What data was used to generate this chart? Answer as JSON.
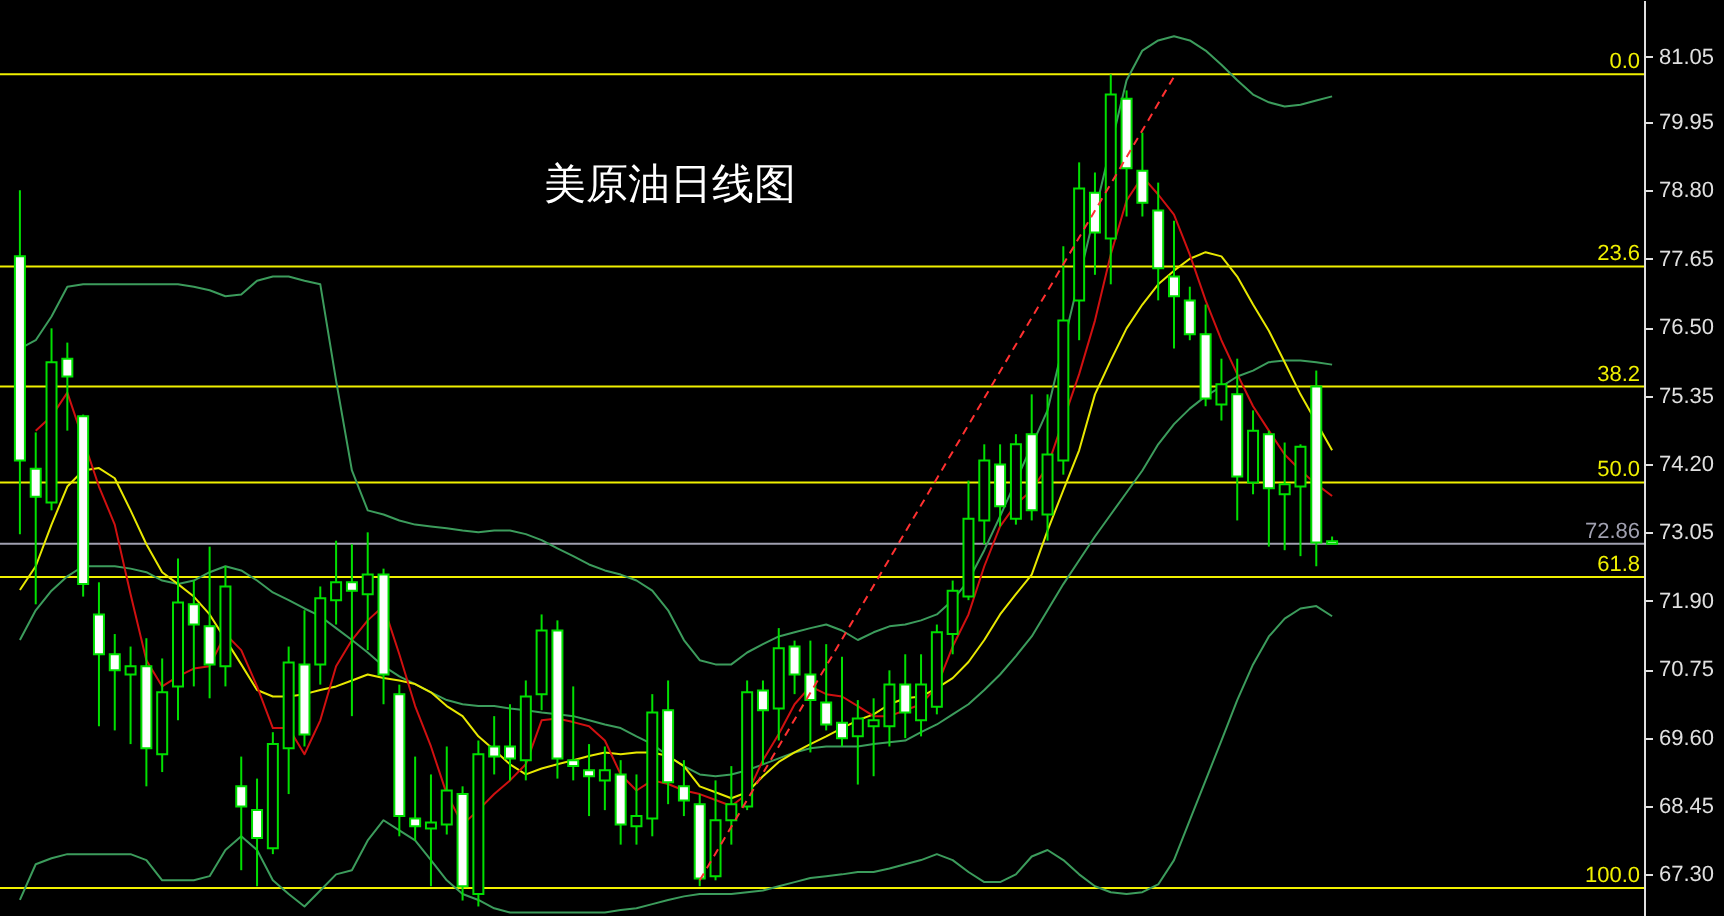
{
  "chart_data": {
    "type": "candlestick",
    "title": "美原油日线图",
    "categories": [
      null,
      null,
      null,
      null,
      null,
      null,
      null,
      null,
      null,
      null,
      null,
      null,
      null,
      null,
      null,
      null,
      null,
      null,
      null,
      null,
      null,
      null,
      null,
      null,
      null,
      null,
      null,
      null,
      null,
      null,
      null,
      null,
      null,
      null,
      null,
      null,
      null,
      null,
      null,
      null,
      null,
      null,
      null,
      null,
      null,
      null,
      null,
      null,
      null,
      null,
      null,
      null,
      null,
      null,
      null,
      null,
      null,
      null,
      null,
      null,
      null,
      null,
      null,
      null,
      null,
      null,
      null,
      null,
      null,
      null,
      null,
      null,
      null,
      null,
      null,
      null,
      null,
      null,
      null,
      null,
      null,
      null,
      null,
      null
    ],
    "ohlc": [
      [
        77.69,
        78.8,
        73.02,
        74.26
      ],
      [
        74.12,
        74.73,
        71.84,
        73.65
      ],
      [
        73.55,
        76.48,
        73.42,
        75.91
      ],
      [
        75.97,
        76.24,
        74.76,
        75.67
      ],
      [
        75.0,
        75.03,
        71.97,
        72.18
      ],
      [
        71.67,
        72.21,
        69.79,
        71.0
      ],
      [
        71.0,
        71.34,
        69.72,
        70.73
      ],
      [
        70.66,
        71.13,
        69.49,
        70.8
      ],
      [
        70.8,
        71.27,
        68.78,
        69.42
      ],
      [
        69.32,
        70.93,
        69.02,
        70.36
      ],
      [
        70.46,
        72.61,
        69.89,
        71.87
      ],
      [
        71.84,
        72.24,
        70.46,
        71.5
      ],
      [
        71.47,
        72.81,
        70.26,
        70.83
      ],
      [
        70.8,
        72.48,
        70.46,
        72.14
      ],
      [
        68.78,
        69.28,
        67.37,
        68.44
      ],
      [
        68.38,
        68.91,
        67.1,
        67.91
      ],
      [
        67.74,
        69.69,
        67.64,
        69.49
      ],
      [
        69.42,
        71.13,
        68.65,
        70.86
      ],
      [
        70.83,
        71.74,
        69.45,
        69.65
      ],
      [
        70.83,
        72.14,
        70.49,
        71.94
      ],
      [
        71.91,
        72.91,
        71.5,
        72.21
      ],
      [
        72.21,
        72.85,
        69.96,
        72.07
      ],
      [
        72.01,
        73.05,
        71.07,
        72.34
      ],
      [
        72.34,
        72.44,
        70.16,
        70.66
      ],
      [
        70.33,
        70.49,
        67.94,
        68.28
      ],
      [
        68.24,
        69.28,
        67.87,
        68.11
      ],
      [
        68.07,
        68.98,
        67.1,
        68.17
      ],
      [
        68.14,
        69.45,
        67.97,
        68.71
      ],
      [
        68.65,
        68.78,
        66.86,
        67.1
      ],
      [
        66.97,
        69.55,
        66.76,
        69.32
      ],
      [
        69.45,
        69.96,
        68.98,
        69.28
      ],
      [
        69.45,
        70.16,
        68.88,
        69.25
      ],
      [
        69.22,
        70.56,
        68.88,
        70.29
      ],
      [
        70.33,
        71.67,
        70.06,
        71.4
      ],
      [
        71.4,
        71.57,
        68.91,
        69.25
      ],
      [
        69.22,
        70.46,
        68.88,
        69.12
      ],
      [
        69.05,
        69.49,
        68.28,
        68.95
      ],
      [
        68.88,
        69.45,
        68.38,
        69.05
      ],
      [
        68.98,
        69.22,
        67.8,
        68.14
      ],
      [
        68.11,
        68.98,
        67.8,
        68.28
      ],
      [
        68.24,
        70.33,
        67.94,
        70.02
      ],
      [
        70.06,
        70.56,
        68.48,
        68.85
      ],
      [
        68.78,
        69.22,
        68.28,
        68.54
      ],
      [
        68.48,
        68.65,
        67.1,
        67.23
      ],
      [
        67.27,
        68.88,
        67.2,
        68.21
      ],
      [
        68.21,
        69.12,
        67.8,
        68.48
      ],
      [
        68.44,
        70.56,
        68.38,
        70.36
      ],
      [
        70.39,
        70.56,
        69.15,
        70.06
      ],
      [
        70.09,
        71.44,
        69.55,
        71.1
      ],
      [
        71.13,
        71.23,
        70.33,
        70.66
      ],
      [
        70.66,
        71.23,
        69.35,
        70.23
      ],
      [
        70.19,
        71.17,
        69.72,
        69.82
      ],
      [
        69.85,
        70.96,
        69.45,
        69.59
      ],
      [
        69.62,
        70.23,
        68.81,
        69.92
      ],
      [
        69.79,
        70.26,
        68.95,
        69.89
      ],
      [
        69.79,
        70.73,
        69.45,
        70.49
      ],
      [
        70.49,
        71.0,
        69.59,
        70.02
      ],
      [
        69.89,
        71.0,
        69.62,
        70.49
      ],
      [
        70.12,
        71.5,
        69.99,
        71.37
      ],
      [
        71.34,
        72.24,
        71.0,
        72.07
      ],
      [
        71.97,
        73.92,
        71.91,
        73.28
      ],
      [
        73.25,
        74.53,
        72.85,
        74.26
      ],
      [
        74.19,
        74.53,
        73.15,
        73.49
      ],
      [
        73.28,
        74.7,
        73.18,
        74.53
      ],
      [
        74.7,
        75.37,
        73.25,
        73.42
      ],
      [
        73.35,
        75.37,
        72.91,
        74.36
      ],
      [
        74.26,
        77.86,
        74.02,
        76.61
      ],
      [
        76.95,
        79.27,
        76.28,
        78.83
      ],
      [
        78.76,
        79.1,
        77.38,
        78.09
      ],
      [
        77.99,
        80.75,
        77.22,
        80.41
      ],
      [
        80.34,
        80.48,
        78.36,
        79.17
      ],
      [
        79.13,
        79.77,
        78.36,
        78.59
      ],
      [
        78.46,
        78.93,
        76.95,
        77.49
      ],
      [
        77.35,
        78.29,
        76.14,
        77.02
      ],
      [
        76.95,
        77.18,
        76.28,
        76.38
      ],
      [
        76.38,
        76.88,
        75.17,
        75.3
      ],
      [
        75.2,
        75.97,
        74.93,
        75.54
      ],
      [
        75.37,
        75.97,
        73.25,
        73.99
      ],
      [
        73.89,
        75.1,
        73.69,
        74.76
      ],
      [
        74.7,
        74.76,
        72.81,
        73.79
      ],
      [
        73.69,
        74.56,
        72.75,
        73.86
      ],
      [
        73.82,
        74.53,
        72.65,
        74.49
      ],
      [
        75.5,
        75.77,
        72.48,
        72.88
      ],
      [
        72.9,
        72.98,
        72.86,
        72.86
      ]
    ],
    "series": [
      {
        "type": "line",
        "color": "#3c9c5c",
        "values": [
          76.14,
          76.28,
          76.68,
          77.18,
          77.22,
          77.22,
          77.22,
          77.22,
          77.22,
          77.22,
          77.22,
          77.18,
          77.12,
          77.02,
          77.05,
          77.28,
          77.35,
          77.35,
          77.28,
          77.22,
          75.6,
          74.09,
          73.42,
          73.35,
          73.25,
          73.18,
          73.15,
          73.12,
          73.08,
          73.05,
          73.08,
          73.08,
          73.02,
          72.92,
          72.78,
          72.65,
          72.51,
          72.41,
          72.34,
          72.24,
          72.07,
          71.74,
          71.24,
          70.9,
          70.83,
          70.83,
          71.03,
          71.17,
          71.3,
          71.37,
          71.44,
          71.5,
          71.4,
          71.24,
          71.37,
          71.47,
          71.5,
          71.57,
          71.67,
          71.91,
          72.24,
          72.75,
          73.32,
          null,
          null,
          75.1,
          null,
          null,
          null,
          null,
          80.65,
          81.15,
          81.32,
          81.39,
          81.32,
          81.15,
          80.91,
          80.65,
          80.41,
          80.28,
          80.21,
          80.24,
          80.31,
          80.38
        ]
      },
      {
        "type": "line",
        "color": "#3c9c5c",
        "values": [
          71.24,
          71.74,
          72.07,
          72.31,
          72.48,
          72.48,
          72.48,
          72.44,
          72.38,
          72.24,
          72.18,
          72.24,
          72.38,
          72.48,
          72.41,
          72.24,
          72.04,
          71.91,
          71.77,
          71.64,
          71.44,
          71.24,
          71.03,
          70.8,
          70.63,
          70.5,
          70.36,
          70.23,
          70.16,
          70.13,
          70.13,
          70.09,
          70.06,
          70.02,
          69.99,
          69.96,
          69.89,
          69.82,
          69.76,
          69.62,
          69.49,
          69.29,
          69.12,
          68.98,
          68.95,
          68.98,
          69.05,
          69.15,
          69.25,
          69.35,
          69.42,
          69.45,
          69.45,
          69.45,
          69.49,
          69.52,
          69.55,
          69.69,
          69.82,
          69.99,
          70.16,
          70.4,
          70.66,
          70.97,
          71.3,
          71.74,
          72.18,
          72.58,
          72.98,
          73.35,
          73.72,
          74.09,
          74.53,
          74.87,
          75.13,
          75.34,
          75.5,
          75.67,
          75.77,
          75.91,
          75.94,
          75.94,
          75.91,
          75.87
        ]
      },
      {
        "type": "line",
        "color": "#3c9c5c",
        "values": [
          66.87,
          67.47,
          67.57,
          67.64,
          67.64,
          67.64,
          67.64,
          67.64,
          67.54,
          67.2,
          67.2,
          67.2,
          67.27,
          67.71,
          67.94,
          67.71,
          67.2,
          66.97,
          66.76,
          67.03,
          67.3,
          67.37,
          67.87,
          68.21,
          68.04,
          67.87,
          67.54,
          67.2,
          66.97,
          66.87,
          66.73,
          66.66,
          66.66,
          66.66,
          66.66,
          66.66,
          66.66,
          66.66,
          66.7,
          66.73,
          66.8,
          66.87,
          66.93,
          66.97,
          66.97,
          66.97,
          67.0,
          67.03,
          67.1,
          67.17,
          67.24,
          67.27,
          67.3,
          67.34,
          67.34,
          67.4,
          67.47,
          67.54,
          67.64,
          67.54,
          67.34,
          67.17,
          67.17,
          67.3,
          67.6,
          67.71,
          67.54,
          67.3,
          67.1,
          67.0,
          66.97,
          67.0,
          67.13,
          67.54,
          68.21,
          68.88,
          69.55,
          70.23,
          70.83,
          71.3,
          71.6,
          71.77,
          71.81,
          71.64
        ]
      },
      {
        "type": "line",
        "color": "#e8e800",
        "values": [
          72.08,
          72.48,
          73.18,
          73.82,
          74.09,
          74.13,
          73.96,
          73.42,
          72.85,
          72.38,
          72.18,
          71.97,
          71.67,
          null,
          70.83,
          70.4,
          70.29,
          70.29,
          70.33,
          70.4,
          70.46,
          70.56,
          70.66,
          70.6,
          70.56,
          70.5,
          70.36,
          70.13,
          69.96,
          69.62,
          69.39,
          69.15,
          68.98,
          69.08,
          69.15,
          69.22,
          69.29,
          69.35,
          69.32,
          69.35,
          69.35,
          69.29,
          69.12,
          68.78,
          68.68,
          68.58,
          68.68,
          68.95,
          69.19,
          69.35,
          69.49,
          69.62,
          69.76,
          69.89,
          69.99,
          70.16,
          70.26,
          70.29,
          70.43,
          70.6,
          70.87,
          71.24,
          71.67,
          72.01,
          72.34,
          73.08,
          73.76,
          74.43,
          75.37,
          75.94,
          76.48,
          76.88,
          77.22,
          77.45,
          77.65,
          77.76,
          77.69,
          77.35,
          76.88,
          76.44,
          75.91,
          75.37,
          null,
          74.43
        ]
      },
      {
        "type": "line",
        "color": "#d01010",
        "values": [
          null,
          74.76,
          75.0,
          75.4,
          null,
          73.82,
          73.18,
          72.01,
          70.9,
          70.46,
          70.63,
          70.76,
          70.8,
          71.34,
          71.07,
          70.46,
          69.76,
          69.76,
          69.32,
          69.89,
          70.8,
          71.24,
          71.57,
          71.81,
          71.0,
          70.13,
          69.45,
          68.65,
          68.14,
          68.38,
          68.65,
          68.88,
          69.15,
          69.89,
          69.92,
          69.86,
          69.79,
          69.55,
          68.98,
          68.71,
          68.88,
          68.82,
          68.71,
          68.65,
          68.55,
          68.45,
          68.65,
          69.22,
          69.66,
          70.16,
          70.46,
          70.33,
          70.29,
          70.13,
          69.96,
          69.96,
          70.06,
          70.16,
          70.46,
          71.13,
          71.67,
          72.48,
          73.15,
          73.52,
          73.76,
          74.16,
          null,
          75.71,
          76.61,
          77.72,
          78.63,
          79.03,
          78.73,
          78.39,
          77.72,
          76.95,
          76.28,
          75.71,
          75.17,
          74.76,
          74.36,
          74.09,
          73.86,
          73.66
        ]
      },
      {
        "type": "line",
        "color": "#ff3030",
        "line_style": "dashed",
        "values": [
          null,
          null,
          null,
          null,
          null,
          null,
          null,
          null,
          null,
          null,
          null,
          null,
          null,
          null,
          null,
          null,
          null,
          null,
          null,
          null,
          null,
          null,
          null,
          null,
          null,
          null,
          null,
          null,
          null,
          null,
          null,
          null,
          null,
          null,
          null,
          null,
          null,
          null,
          null,
          null,
          null,
          null,
          null,
          67.2,
          null,
          null,
          null,
          null,
          null,
          null,
          null,
          null,
          null,
          null,
          null,
          null,
          null,
          null,
          null,
          null,
          null,
          null,
          null,
          null,
          null,
          null,
          null,
          null,
          null,
          null,
          null,
          null,
          null,
          80.71,
          null,
          null,
          null,
          null,
          null,
          null,
          null,
          null,
          null,
          null
        ]
      }
    ],
    "ylim": [
      66.6,
      82.0
    ],
    "yticks": [
      {
        "value": 67.3,
        "label": "67.30"
      },
      68.45,
      {
        "value": 69.6,
        "label": "69.60"
      },
      70.75,
      {
        "value": 71.9,
        "label": "71.90"
      },
      73.05,
      {
        "value": 74.2,
        "label": "74.20"
      },
      75.35,
      {
        "value": 76.5,
        "label": "76.50"
      },
      77.65,
      {
        "value": 78.8,
        "label": "78.80"
      },
      79.95,
      81.05
    ],
    "ref_lines": [
      {
        "axis": "y",
        "value": 80.75,
        "color": "#f0f000"
      },
      {
        "axis": "y",
        "value": 77.52,
        "color": "#f0f000"
      },
      {
        "axis": "y",
        "value": 75.5,
        "color": "#f0f000"
      },
      {
        "axis": "y",
        "value": 73.89,
        "color": "#f0f000"
      },
      {
        "axis": "y",
        "value": 72.3,
        "color": "#f0f000"
      },
      {
        "axis": "y",
        "value": 67.07,
        "color": "#f0f000"
      },
      {
        "axis": "y",
        "value": 72.86,
        "label": "72.86",
        "color": "#a0a0b0"
      }
    ],
    "annotations": [
      {
        "text": "0.0",
        "y": 80.75
      },
      {
        "text": "23.6",
        "y": 77.52
      },
      {
        "text": "38.2",
        "y": 75.5
      },
      {
        "text": "50.0",
        "y": 73.89
      },
      {
        "text": "61.8",
        "y": 72.3
      },
      {
        "text": "100.0",
        "y": 67.07
      }
    ],
    "tick_labels": "y"
  }
}
